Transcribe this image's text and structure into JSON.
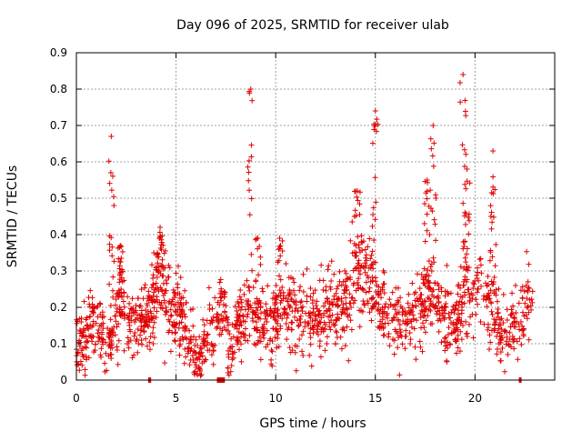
{
  "chart_data": {
    "type": "scatter",
    "title": "Day 096 of 2025, SRMTID for receiver ulab",
    "xlabel": "GPS time / hours",
    "ylabel": "SRMTID / TECUs",
    "xlim": [
      0,
      24
    ],
    "ylim": [
      0,
      0.9
    ],
    "xticks": [
      0,
      5,
      10,
      15,
      20
    ],
    "yticks": [
      0,
      0.1,
      0.2,
      0.3,
      0.4,
      0.5,
      0.6,
      0.7,
      0.8,
      0.9
    ],
    "xtick_labels": [
      "0",
      "5",
      "10",
      "15",
      "20"
    ],
    "ytick_labels": [
      "0",
      "0.1",
      "0.2",
      "0.3",
      "0.4",
      "0.5",
      "0.6",
      "0.7",
      "0.8",
      "0.9"
    ],
    "grid": true,
    "marker": "+",
    "color": "#e00000",
    "profile": [
      [
        0.0,
        0.11
      ],
      [
        0.3,
        0.1
      ],
      [
        0.6,
        0.14
      ],
      [
        0.9,
        0.17
      ],
      [
        1.2,
        0.16
      ],
      [
        1.5,
        0.1
      ],
      [
        1.7,
        0.12
      ],
      [
        2.0,
        0.18
      ],
      [
        2.3,
        0.22
      ],
      [
        2.6,
        0.16
      ],
      [
        3.0,
        0.14
      ],
      [
        3.4,
        0.17
      ],
      [
        3.8,
        0.2
      ],
      [
        4.0,
        0.27
      ],
      [
        4.3,
        0.27
      ],
      [
        4.6,
        0.22
      ],
      [
        5.0,
        0.2
      ],
      [
        5.3,
        0.15
      ],
      [
        5.7,
        0.12
      ],
      [
        6.0,
        0.07
      ],
      [
        6.2,
        0.05
      ],
      [
        6.5,
        0.12
      ],
      [
        6.8,
        0.14
      ],
      [
        7.1,
        0.18
      ],
      [
        7.4,
        0.19
      ],
      [
        7.7,
        0.1
      ],
      [
        8.0,
        0.13
      ],
      [
        8.4,
        0.18
      ],
      [
        8.8,
        0.19
      ],
      [
        9.2,
        0.16
      ],
      [
        9.6,
        0.15
      ],
      [
        10.0,
        0.18
      ],
      [
        10.4,
        0.2
      ],
      [
        10.8,
        0.19
      ],
      [
        11.2,
        0.17
      ],
      [
        11.6,
        0.16
      ],
      [
        12.0,
        0.16
      ],
      [
        12.4,
        0.17
      ],
      [
        12.8,
        0.19
      ],
      [
        13.2,
        0.2
      ],
      [
        13.6,
        0.23
      ],
      [
        14.0,
        0.28
      ],
      [
        14.4,
        0.3
      ],
      [
        14.8,
        0.28
      ],
      [
        15.2,
        0.22
      ],
      [
        15.6,
        0.19
      ],
      [
        16.0,
        0.18
      ],
      [
        16.4,
        0.17
      ],
      [
        16.8,
        0.16
      ],
      [
        17.2,
        0.19
      ],
      [
        17.6,
        0.23
      ],
      [
        18.0,
        0.22
      ],
      [
        18.4,
        0.19
      ],
      [
        18.8,
        0.16
      ],
      [
        19.2,
        0.18
      ],
      [
        19.5,
        0.24
      ],
      [
        19.8,
        0.25
      ],
      [
        20.2,
        0.22
      ],
      [
        20.6,
        0.23
      ],
      [
        21.0,
        0.17
      ],
      [
        21.4,
        0.12
      ],
      [
        21.8,
        0.13
      ],
      [
        22.2,
        0.16
      ],
      [
        22.6,
        0.2
      ],
      [
        22.9,
        0.24
      ]
    ],
    "scatter_std": 0.055,
    "spikes": [
      {
        "x": 1.75,
        "ymax": 0.67
      },
      {
        "x": 2.2,
        "ymax": 0.37
      },
      {
        "x": 4.2,
        "ymax": 0.42
      },
      {
        "x": 8.75,
        "ymax": 0.8
      },
      {
        "x": 9.1,
        "ymax": 0.39
      },
      {
        "x": 10.2,
        "ymax": 0.39
      },
      {
        "x": 14.1,
        "ymax": 0.52
      },
      {
        "x": 15.0,
        "ymax": 0.74
      },
      {
        "x": 17.6,
        "ymax": 0.55
      },
      {
        "x": 17.9,
        "ymax": 0.7
      },
      {
        "x": 19.4,
        "ymax": 0.84
      },
      {
        "x": 19.6,
        "ymax": 0.58
      },
      {
        "x": 20.9,
        "ymax": 0.63
      }
    ],
    "zero_markers": [
      {
        "x0": 3.6,
        "x1": 3.75
      },
      {
        "x0": 7.05,
        "x1": 7.45
      },
      {
        "x0": 22.2,
        "x1": 22.3
      }
    ]
  }
}
